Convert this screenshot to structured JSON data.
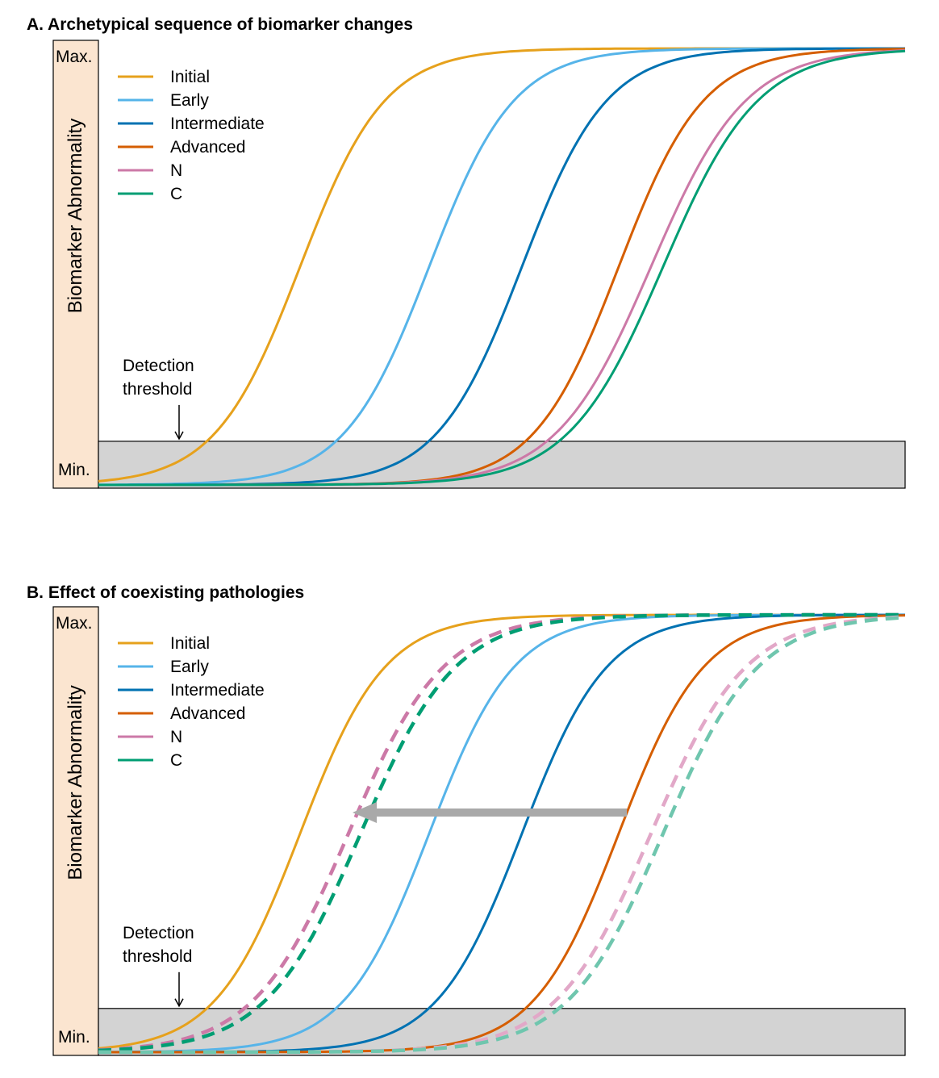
{
  "chart_data": [
    {
      "type": "line",
      "title": "A. Archetypical sequence of biomarker changes",
      "ylabel": "Biomarker Abnormality",
      "y_ticks": [
        "Max.",
        "Min."
      ],
      "xlabel": "",
      "xlim": [
        0,
        100
      ],
      "ylim": [
        0,
        1
      ],
      "detection_threshold": 0.1,
      "threshold_label": "Detection threshold",
      "legend_position": "top-left",
      "series": [
        {
          "name": "Initial",
          "color": "#E6A11C",
          "dashed": false,
          "midpoint": 25,
          "steepness": 0.19
        },
        {
          "name": "Early",
          "color": "#56B4E9",
          "dashed": false,
          "midpoint": 41,
          "steepness": 0.19
        },
        {
          "name": "Intermediate",
          "color": "#0072B2",
          "dashed": false,
          "midpoint": 52.5,
          "steepness": 0.19
        },
        {
          "name": "Advanced",
          "color": "#D55E00",
          "dashed": false,
          "midpoint": 64.5,
          "steepness": 0.19
        },
        {
          "name": "N",
          "color": "#CC79A7",
          "dashed": false,
          "midpoint": 68.5,
          "steepness": 0.17
        },
        {
          "name": "C",
          "color": "#009E73",
          "dashed": false,
          "midpoint": 70,
          "steepness": 0.17
        }
      ]
    },
    {
      "type": "line",
      "title": "B. Effect of coexisting pathologies",
      "ylabel": "Biomarker Abnormality",
      "y_ticks": [
        "Max.",
        "Min."
      ],
      "xlabel": "",
      "xlim": [
        0,
        100
      ],
      "ylim": [
        0,
        1
      ],
      "detection_threshold": 0.1,
      "threshold_label": "Detection threshold",
      "legend_position": "top-left",
      "annotation": "arrow shifting N and C curves earlier",
      "arrow": {
        "from_x": 65.5,
        "to_x": 31.5,
        "y": 0.5
      },
      "series": [
        {
          "name": "Initial",
          "color": "#E6A11C",
          "dashed": false,
          "midpoint": 25,
          "steepness": 0.19
        },
        {
          "name": "Early",
          "color": "#56B4E9",
          "dashed": false,
          "midpoint": 41,
          "steepness": 0.19
        },
        {
          "name": "Intermediate",
          "color": "#0072B2",
          "dashed": false,
          "midpoint": 52.5,
          "steepness": 0.19
        },
        {
          "name": "Advanced",
          "color": "#D55E00",
          "dashed": false,
          "midpoint": 64.5,
          "steepness": 0.19
        },
        {
          "name": "N",
          "color": "#CC79A7",
          "dashed": true,
          "midpoint": 31,
          "steepness": 0.17
        },
        {
          "name": "C",
          "color": "#009E73",
          "dashed": true,
          "midpoint": 32.5,
          "steepness": 0.17
        },
        {
          "name": "N (original)",
          "color": "#E2A8C8",
          "dashed": true,
          "midpoint": 68.5,
          "steepness": 0.17,
          "legend": false
        },
        {
          "name": "C (original)",
          "color": "#6FC6AE",
          "dashed": true,
          "midpoint": 70,
          "steepness": 0.17,
          "legend": false
        }
      ]
    }
  ]
}
